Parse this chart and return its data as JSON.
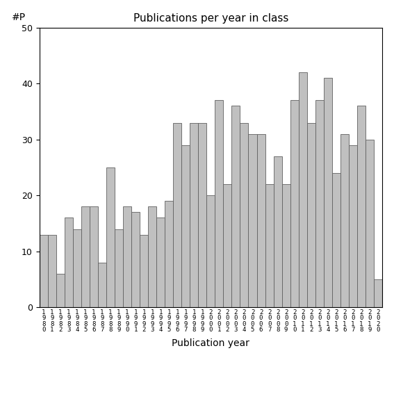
{
  "title": "Publications per year in class",
  "xlabel": "Publication year",
  "ylabel": "#P",
  "ylim": [
    0,
    50
  ],
  "yticks": [
    0,
    10,
    20,
    30,
    40,
    50
  ],
  "bar_color": "#c0c0c0",
  "bar_edgecolor": "#606060",
  "background_color": "#ffffff",
  "values": [
    13,
    13,
    6,
    16,
    14,
    18,
    18,
    8,
    25,
    14,
    18,
    17,
    13,
    18,
    16,
    19,
    33,
    29,
    33,
    33,
    20,
    37,
    22,
    36,
    33,
    31,
    31,
    22,
    27,
    22,
    37,
    42,
    33,
    37,
    41,
    24,
    31,
    29,
    36,
    30,
    5
  ],
  "start_year": 1980,
  "figsize": [
    5.67,
    5.67
  ],
  "dpi": 100
}
